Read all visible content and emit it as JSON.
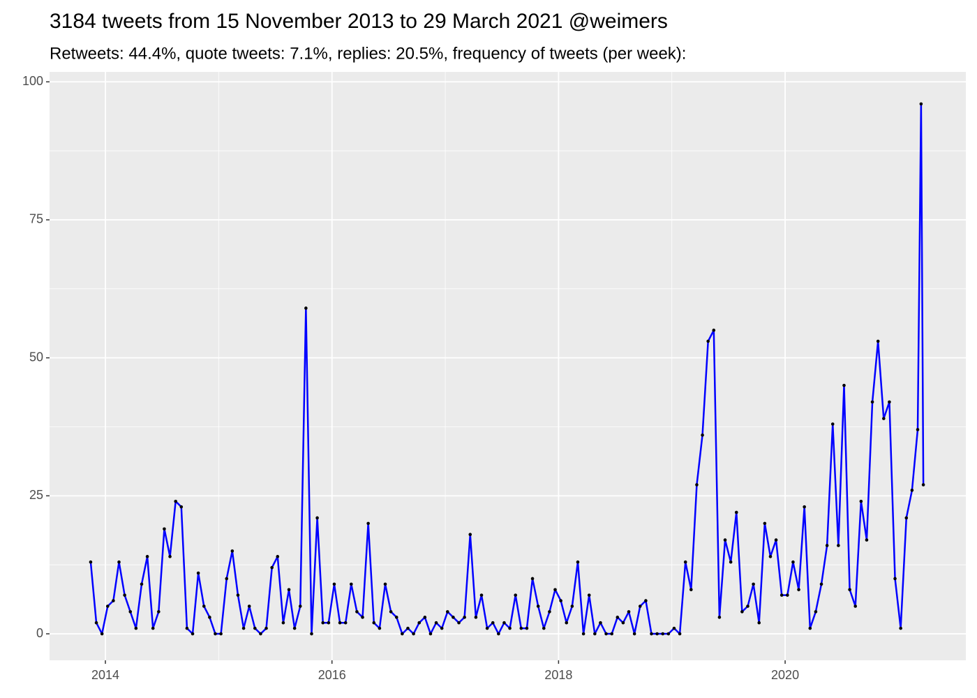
{
  "chart_data": {
    "type": "line",
    "title": "3184 tweets from 15 November 2013 to 29 March 2021 @weimers",
    "subtitle": "Retweets: 44.4%, quote tweets: 7.1%, replies: 20.5%, frequency of tweets (per week):",
    "x": [
      2013.87,
      2013.92,
      2013.97,
      2014.02,
      2014.07,
      2014.12,
      2014.17,
      2014.22,
      2014.27,
      2014.32,
      2014.37,
      2014.42,
      2014.47,
      2014.52,
      2014.57,
      2014.62,
      2014.67,
      2014.72,
      2014.77,
      2014.82,
      2014.87,
      2014.92,
      2014.97,
      2015.02,
      2015.07,
      2015.12,
      2015.17,
      2015.22,
      2015.27,
      2015.32,
      2015.37,
      2015.42,
      2015.47,
      2015.52,
      2015.57,
      2015.62,
      2015.67,
      2015.72,
      2015.77,
      2015.82,
      2015.87,
      2015.92,
      2015.97,
      2016.02,
      2016.07,
      2016.12,
      2016.17,
      2016.22,
      2016.27,
      2016.32,
      2016.37,
      2016.42,
      2016.47,
      2016.52,
      2016.57,
      2016.62,
      2016.67,
      2016.72,
      2016.77,
      2016.82,
      2016.87,
      2016.92,
      2016.97,
      2017.02,
      2017.07,
      2017.12,
      2017.17,
      2017.22,
      2017.27,
      2017.32,
      2017.37,
      2017.42,
      2017.47,
      2017.52,
      2017.57,
      2017.62,
      2017.67,
      2017.72,
      2017.77,
      2017.82,
      2017.87,
      2017.92,
      2017.97,
      2018.02,
      2018.07,
      2018.12,
      2018.17,
      2018.22,
      2018.27,
      2018.32,
      2018.37,
      2018.42,
      2018.47,
      2018.52,
      2018.57,
      2018.62,
      2018.67,
      2018.72,
      2018.77,
      2018.82,
      2018.87,
      2018.92,
      2018.97,
      2019.02,
      2019.07,
      2019.12,
      2019.17,
      2019.22,
      2019.27,
      2019.32,
      2019.37,
      2019.42,
      2019.47,
      2019.52,
      2019.57,
      2019.62,
      2019.67,
      2019.72,
      2019.77,
      2019.82,
      2019.87,
      2019.92,
      2019.97,
      2020.02,
      2020.07,
      2020.12,
      2020.17,
      2020.22,
      2020.27,
      2020.32,
      2020.37,
      2020.42,
      2020.47,
      2020.52,
      2020.57,
      2020.62,
      2020.67,
      2020.72,
      2020.77,
      2020.82,
      2020.87,
      2020.92,
      2020.97,
      2021.02,
      2021.07,
      2021.12,
      2021.17,
      2021.2,
      2021.22
    ],
    "series": [
      {
        "color": "#0000ff",
        "values": [
          13,
          2,
          0,
          5,
          6,
          13,
          7,
          4,
          1,
          9,
          14,
          1,
          4,
          19,
          14,
          24,
          23,
          1,
          0,
          11,
          5,
          3,
          0,
          0,
          10,
          15,
          7,
          1,
          5,
          1,
          0,
          1,
          12,
          14,
          2,
          8,
          1,
          5,
          59,
          0,
          21,
          2,
          2,
          9,
          2,
          2,
          9,
          4,
          3,
          20,
          2,
          1,
          9,
          4,
          3,
          0,
          1,
          0,
          2,
          3,
          0,
          2,
          1,
          4,
          3,
          2,
          3,
          18,
          3,
          7,
          1,
          2,
          0,
          2,
          1,
          7,
          1,
          1,
          10,
          5,
          1,
          4,
          8,
          6,
          2,
          5,
          13,
          0,
          7,
          0,
          2,
          0,
          0,
          3,
          2,
          4,
          0,
          5,
          6,
          0,
          0,
          0,
          0,
          1,
          0,
          13,
          8,
          27,
          36,
          53,
          55,
          3,
          17,
          13,
          22,
          4,
          5,
          9,
          2,
          20,
          14,
          17,
          7,
          7,
          13,
          8,
          23,
          1,
          4,
          9,
          16,
          38,
          16,
          45,
          8,
          5,
          24,
          17,
          42,
          53,
          39,
          42,
          10,
          1,
          21,
          26,
          37,
          96,
          27
        ]
      }
    ],
    "point_color": "#000000",
    "xlim": [
      2013.507,
      2021.595
    ],
    "xticks": [
      2014,
      2016,
      2018,
      2020
    ],
    "ylim": [
      -4.8,
      101.8
    ],
    "yticks": [
      0,
      25,
      50,
      75,
      100
    ],
    "grid": true
  }
}
